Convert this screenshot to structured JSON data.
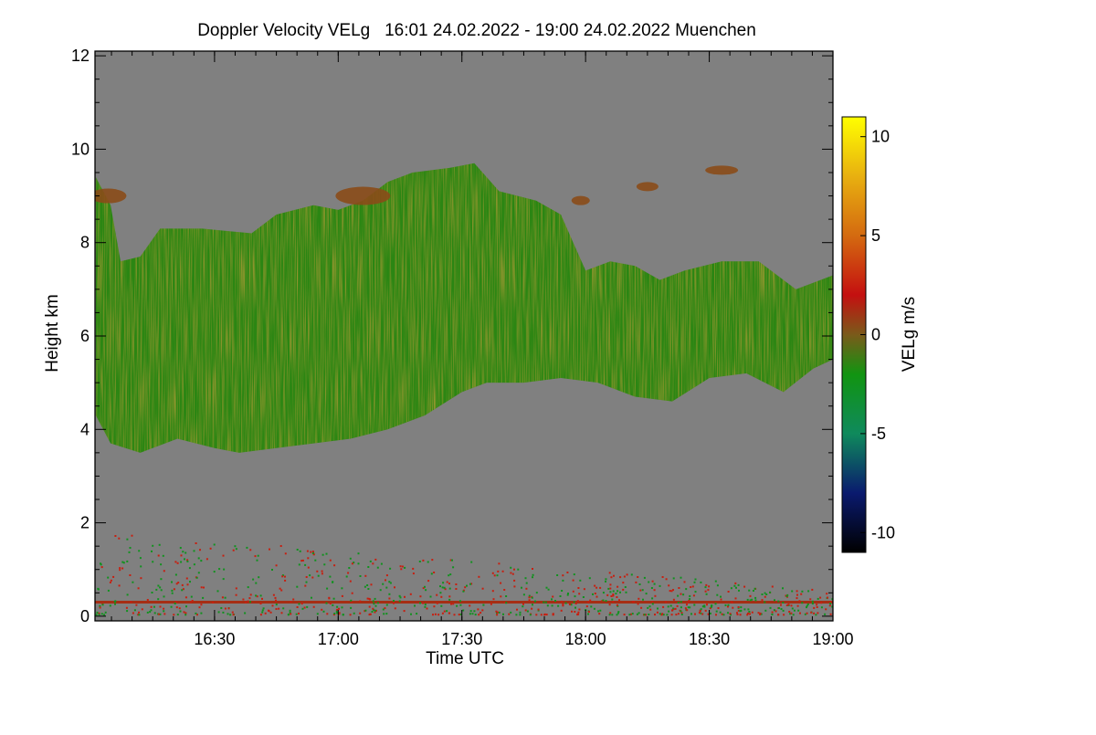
{
  "chart_data": {
    "type": "heatmap",
    "title": "Doppler Velocity VELg   16:01 24.02.2022 - 19:00 24.02.2022 Muenchen",
    "xlabel": "Time UTC",
    "ylabel": "Height km",
    "x_range_hours": [
      16.0167,
      19.0
    ],
    "x_ticks": [
      {
        "value": 16.5,
        "label": "16:30"
      },
      {
        "value": 17.0,
        "label": "17:00"
      },
      {
        "value": 17.5,
        "label": "17:30"
      },
      {
        "value": 18.0,
        "label": "18:00"
      },
      {
        "value": 18.5,
        "label": "18:30"
      },
      {
        "value": 19.0,
        "label": "19:00"
      }
    ],
    "ylim": [
      -0.1,
      12.1
    ],
    "y_ticks": [
      {
        "value": 0,
        "label": "0"
      },
      {
        "value": 2,
        "label": "2"
      },
      {
        "value": 4,
        "label": "4"
      },
      {
        "value": 6,
        "label": "6"
      },
      {
        "value": 8,
        "label": "8"
      },
      {
        "value": 10,
        "label": "10"
      },
      {
        "value": 12,
        "label": "12"
      }
    ],
    "background_color": "#808080",
    "colorbar": {
      "label": "VELg m/s",
      "range": [
        -11,
        11
      ],
      "ticks": [
        {
          "value": 10,
          "label": "10"
        },
        {
          "value": 5,
          "label": "5"
        },
        {
          "value": 0,
          "label": "0"
        },
        {
          "value": -5,
          "label": "-5"
        },
        {
          "value": -10,
          "label": "-10"
        }
      ],
      "stops": [
        {
          "value": -11,
          "color": "#000000"
        },
        {
          "value": -8,
          "color": "#0a1a6e"
        },
        {
          "value": -5,
          "color": "#0f8a5c"
        },
        {
          "value": -2,
          "color": "#119411"
        },
        {
          "value": 0,
          "color": "#7a5a1a"
        },
        {
          "value": 2,
          "color": "#c41010"
        },
        {
          "value": 5,
          "color": "#d46a10"
        },
        {
          "value": 8,
          "color": "#e8b010"
        },
        {
          "value": 11,
          "color": "#ffff00"
        }
      ]
    },
    "cloud_layer": {
      "description_velocity_ms": -1.5,
      "base_km": [
        [
          16.02,
          4.3
        ],
        [
          16.08,
          3.7
        ],
        [
          16.2,
          3.5
        ],
        [
          16.35,
          3.8
        ],
        [
          16.5,
          3.6
        ],
        [
          16.6,
          3.5
        ],
        [
          16.75,
          3.6
        ],
        [
          16.9,
          3.7
        ],
        [
          17.05,
          3.8
        ],
        [
          17.2,
          4.0
        ],
        [
          17.35,
          4.3
        ],
        [
          17.5,
          4.8
        ],
        [
          17.6,
          5.0
        ],
        [
          17.75,
          5.0
        ],
        [
          17.9,
          5.1
        ],
        [
          18.05,
          5.0
        ],
        [
          18.2,
          4.7
        ],
        [
          18.35,
          4.6
        ],
        [
          18.5,
          5.1
        ],
        [
          18.65,
          5.2
        ],
        [
          18.8,
          4.8
        ],
        [
          18.92,
          5.3
        ],
        [
          19.0,
          5.5
        ]
      ],
      "top_km": [
        [
          16.02,
          9.4
        ],
        [
          16.08,
          8.8
        ],
        [
          16.12,
          7.6
        ],
        [
          16.2,
          7.7
        ],
        [
          16.28,
          8.3
        ],
        [
          16.45,
          8.3
        ],
        [
          16.65,
          8.2
        ],
        [
          16.75,
          8.6
        ],
        [
          16.9,
          8.8
        ],
        [
          17.0,
          8.7
        ],
        [
          17.1,
          8.9
        ],
        [
          17.2,
          9.3
        ],
        [
          17.3,
          9.5
        ],
        [
          17.45,
          9.6
        ],
        [
          17.55,
          9.7
        ],
        [
          17.65,
          9.1
        ],
        [
          17.8,
          8.9
        ],
        [
          17.9,
          8.6
        ],
        [
          17.95,
          8.0
        ],
        [
          18.0,
          7.4
        ],
        [
          18.1,
          7.6
        ],
        [
          18.2,
          7.5
        ],
        [
          18.3,
          7.2
        ],
        [
          18.4,
          7.4
        ],
        [
          18.55,
          7.6
        ],
        [
          18.7,
          7.6
        ],
        [
          18.85,
          7.0
        ],
        [
          19.0,
          7.3
        ]
      ]
    },
    "clutter_layer_km": 0.3
  }
}
